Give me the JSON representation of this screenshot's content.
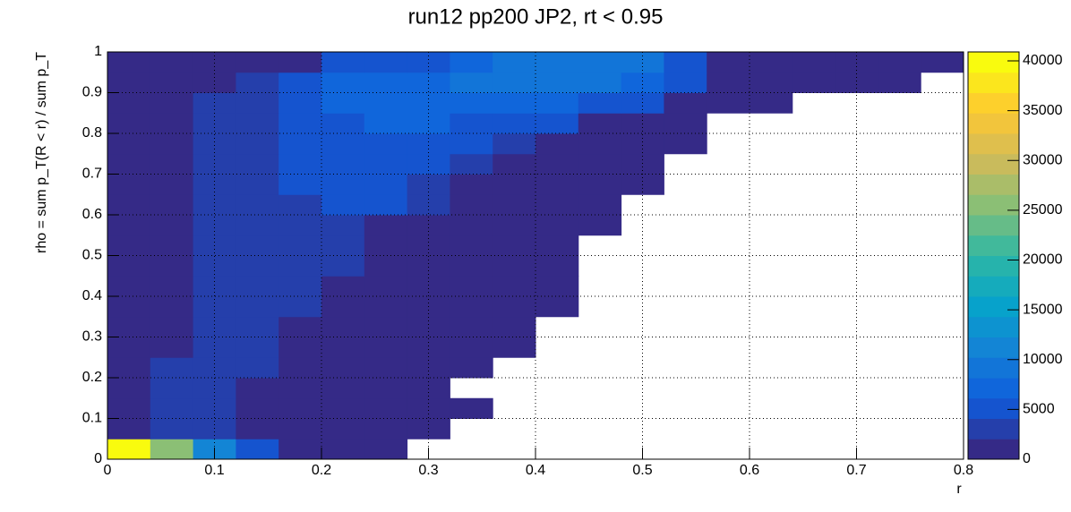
{
  "chart_data": {
    "type": "heatmap",
    "title": "run12 pp200 JP2, rt < 0.95",
    "x_label": "r",
    "y_label": "rho = sum p_T(R < r) / sum p_T",
    "xlim": [
      0,
      0.8
    ],
    "ylim": [
      0,
      1
    ],
    "zlim": [
      0,
      40900
    ],
    "xticks": [
      0,
      0.1,
      0.2,
      0.3,
      0.4,
      0.5,
      0.6,
      0.7,
      0.8
    ],
    "yticks": [
      0,
      0.1,
      0.2,
      0.3,
      0.4,
      0.5,
      0.6,
      0.7,
      0.8,
      0.9,
      1
    ],
    "zticks": [
      0,
      5000,
      10000,
      15000,
      20000,
      25000,
      30000,
      35000,
      40000
    ],
    "xbins": [
      0,
      0.04,
      0.08,
      0.12,
      0.16,
      0.2,
      0.24,
      0.28,
      0.32,
      0.36,
      0.4,
      0.44,
      0.48,
      0.52,
      0.56,
      0.6,
      0.64,
      0.68,
      0.72,
      0.76,
      0.8
    ],
    "ybins": [
      0,
      0.05,
      0.1,
      0.15,
      0.2,
      0.25,
      0.3,
      0.35,
      0.4,
      0.45,
      0.5,
      0.55,
      0.6,
      0.65,
      0.7,
      0.75,
      0.8,
      0.85,
      0.9,
      0.95,
      1
    ],
    "grid": true,
    "levels": 20,
    "colorscale": [
      "#352a87",
      "#0f5cdd",
      "#1481d6",
      "#06a4ca",
      "#2eb7a4",
      "#87bf77",
      "#d1bb59",
      "#fec832",
      "#f9fb0e"
    ],
    "values": [
      [
        40500,
        25000,
        11000,
        5000,
        1200,
        1000,
        800,
        null,
        null,
        null,
        null,
        null,
        null,
        null,
        null,
        null,
        null,
        null,
        null,
        null
      ],
      [
        1500,
        4000,
        4000,
        1500,
        1200,
        1000,
        900,
        700,
        null,
        null,
        null,
        null,
        null,
        null,
        null,
        null,
        null,
        null,
        null,
        null
      ],
      [
        1500,
        4000,
        4000,
        1500,
        1200,
        1000,
        900,
        700,
        600,
        null,
        null,
        null,
        null,
        null,
        null,
        null,
        null,
        null,
        null,
        null
      ],
      [
        1500,
        4000,
        4000,
        1500,
        1200,
        1000,
        900,
        700,
        null,
        null,
        null,
        null,
        null,
        null,
        null,
        null,
        null,
        null,
        null,
        null
      ],
      [
        1500,
        4000,
        4000,
        4000,
        1500,
        1200,
        1000,
        800,
        600,
        null,
        null,
        null,
        null,
        null,
        null,
        null,
        null,
        null,
        null,
        null
      ],
      [
        1500,
        1500,
        4000,
        4000,
        1500,
        1200,
        1000,
        900,
        700,
        600,
        null,
        null,
        null,
        null,
        null,
        null,
        null,
        null,
        null,
        null
      ],
      [
        1500,
        1500,
        4000,
        4000,
        1500,
        1200,
        1000,
        900,
        700,
        600,
        null,
        null,
        null,
        null,
        null,
        null,
        null,
        null,
        null,
        null
      ],
      [
        1500,
        1500,
        4000,
        4000,
        4000,
        1500,
        1200,
        1000,
        900,
        700,
        600,
        null,
        null,
        null,
        null,
        null,
        null,
        null,
        null,
        null
      ],
      [
        1500,
        1500,
        4000,
        4000,
        4000,
        1500,
        1200,
        1000,
        900,
        700,
        600,
        null,
        null,
        null,
        null,
        null,
        null,
        null,
        null,
        null
      ],
      [
        1500,
        1500,
        4000,
        4000,
        4000,
        3500,
        1500,
        1200,
        1000,
        800,
        600,
        null,
        null,
        null,
        null,
        null,
        null,
        null,
        null,
        null
      ],
      [
        1500,
        1500,
        4000,
        4000,
        4000,
        3500,
        1500,
        1200,
        1000,
        800,
        600,
        null,
        null,
        null,
        null,
        null,
        null,
        null,
        null,
        null
      ],
      [
        1500,
        1500,
        4000,
        4000,
        4000,
        3500,
        1500,
        1200,
        1000,
        900,
        700,
        600,
        null,
        null,
        null,
        null,
        null,
        null,
        null,
        null
      ],
      [
        1500,
        1500,
        4000,
        4000,
        4000,
        4500,
        4500,
        3500,
        1500,
        1200,
        1000,
        800,
        null,
        null,
        null,
        null,
        null,
        null,
        null,
        null
      ],
      [
        1500,
        1500,
        4000,
        4000,
        5500,
        5500,
        5500,
        4000,
        1500,
        1200,
        1000,
        800,
        600,
        null,
        null,
        null,
        null,
        null,
        null,
        null
      ],
      [
        1500,
        1500,
        4000,
        4000,
        5500,
        5500,
        5000,
        4500,
        3500,
        1500,
        1200,
        1000,
        600,
        null,
        null,
        null,
        null,
        null,
        null,
        null
      ],
      [
        1500,
        1500,
        4000,
        4000,
        5500,
        5500,
        5500,
        5000,
        4500,
        3500,
        2000,
        1200,
        1000,
        700,
        null,
        null,
        null,
        null,
        null,
        null
      ],
      [
        1500,
        1500,
        4000,
        4000,
        6000,
        6000,
        6500,
        6500,
        6000,
        5000,
        4500,
        1500,
        1200,
        800,
        null,
        null,
        null,
        null,
        null,
        null
      ],
      [
        1500,
        1500,
        4000,
        4000,
        6000,
        6500,
        7000,
        7500,
        7500,
        7000,
        6500,
        5500,
        4500,
        1500,
        1000,
        800,
        null,
        null,
        null,
        null
      ],
      [
        1500,
        1500,
        1500,
        4000,
        6000,
        6500,
        7500,
        8000,
        8500,
        8500,
        8500,
        8500,
        7500,
        4500,
        1500,
        1200,
        1000,
        800,
        600,
        null
      ],
      [
        1500,
        1500,
        1500,
        1500,
        1500,
        4500,
        4500,
        6000,
        8000,
        9000,
        9500,
        9500,
        9000,
        5500,
        1500,
        1200,
        1000,
        900,
        700,
        600
      ]
    ]
  }
}
